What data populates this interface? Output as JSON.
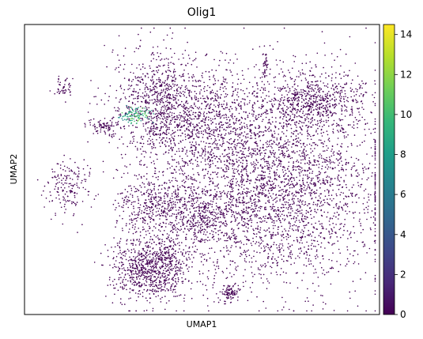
{
  "chart_data": {
    "type": "scatter",
    "title": "Olig1",
    "xlabel": "UMAP1",
    "ylabel": "UMAP2",
    "x_ticks": [],
    "y_ticks": [],
    "colorbar": {
      "colormap": "viridis",
      "range": [
        0,
        14.5
      ],
      "ticks": [
        "0",
        "2",
        "4",
        "6",
        "8",
        "10",
        "12",
        "14"
      ],
      "stops": [
        "#440154",
        "#482878",
        "#3e4989",
        "#31688e",
        "#26828e",
        "#1f9e89",
        "#35b779",
        "#6ece58",
        "#b5de2b",
        "#fde725"
      ]
    },
    "point_color_low": "#440154",
    "clusters": [
      {
        "name": "large-right",
        "cx": 0.7,
        "cy": 0.55,
        "sx": 0.16,
        "sy": 0.17,
        "n": 3200
      },
      {
        "name": "top-right",
        "cx": 0.82,
        "cy": 0.26,
        "sx": 0.07,
        "sy": 0.05,
        "n": 650
      },
      {
        "name": "upper-middle",
        "cx": 0.5,
        "cy": 0.32,
        "sx": 0.09,
        "sy": 0.08,
        "n": 750
      },
      {
        "name": "top-left-branch",
        "cx": 0.37,
        "cy": 0.27,
        "sx": 0.06,
        "sy": 0.1,
        "n": 700
      },
      {
        "name": "lower-middle",
        "cx": 0.5,
        "cy": 0.67,
        "sx": 0.07,
        "sy": 0.05,
        "n": 400
      },
      {
        "name": "left-middle",
        "cx": 0.36,
        "cy": 0.62,
        "sx": 0.05,
        "sy": 0.05,
        "n": 350
      },
      {
        "name": "bottom-left",
        "cx": 0.36,
        "cy": 0.84,
        "sx": 0.055,
        "sy": 0.055,
        "n": 900
      },
      {
        "name": "bottom-small",
        "cx": 0.58,
        "cy": 0.93,
        "sx": 0.012,
        "sy": 0.016,
        "n": 90
      },
      {
        "name": "left-arc",
        "cx": 0.12,
        "cy": 0.56,
        "sx": 0.03,
        "sy": 0.05,
        "n": 170
      },
      {
        "name": "left-small-1",
        "cx": 0.22,
        "cy": 0.35,
        "sx": 0.022,
        "sy": 0.012,
        "n": 80
      },
      {
        "name": "left-small-2",
        "cx": 0.11,
        "cy": 0.22,
        "sx": 0.015,
        "sy": 0.02,
        "n": 50
      },
      {
        "name": "stalk",
        "cx": 0.68,
        "cy": 0.14,
        "sx": 0.006,
        "sy": 0.03,
        "n": 40
      }
    ],
    "highlight_cluster": {
      "cx": 0.31,
      "cy": 0.31,
      "sx": 0.02,
      "sy": 0.016,
      "n": 110,
      "values": [
        6,
        12
      ]
    }
  }
}
